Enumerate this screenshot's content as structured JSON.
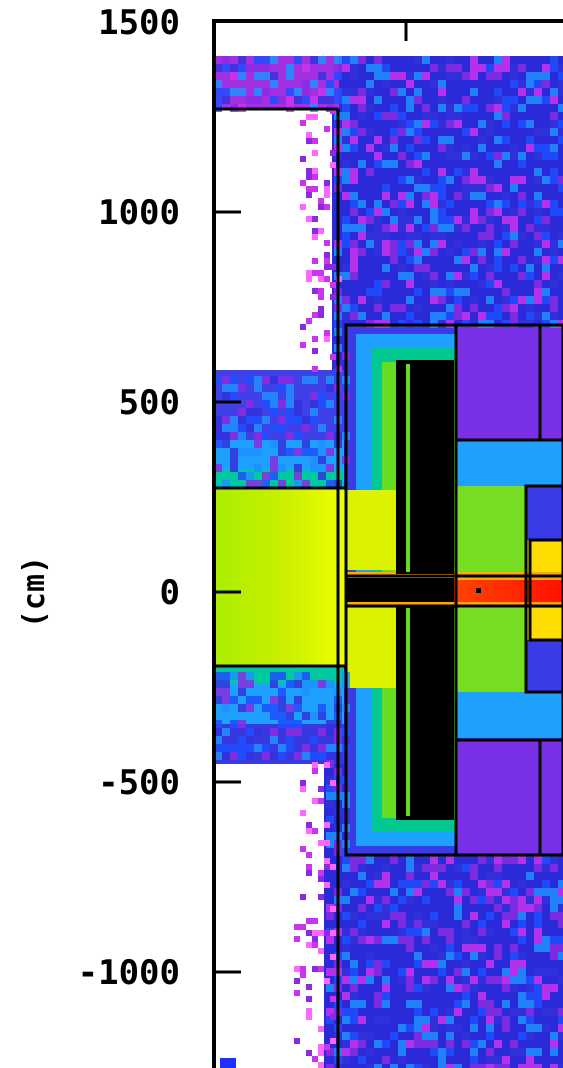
{
  "chart_data": {
    "type": "heatmap",
    "title": "",
    "xlabel": "",
    "ylabel": "(cm)",
    "ylim": [
      -1250,
      1500
    ],
    "yticks": [
      1500,
      1000,
      500,
      0,
      -500,
      -1000
    ],
    "ytick_labels": [
      "1500",
      "1000",
      "500",
      "0",
      "-500",
      "-1000"
    ],
    "grid": false,
    "colors": {
      "background": "#ffffff",
      "frame": "#000000",
      "scale_low_to_high": [
        "#ff66ff",
        "#cc33ee",
        "#8a2be2",
        "#3333dd",
        "#1f4fff",
        "#1e90ff",
        "#00c8ff",
        "#00cc88",
        "#66dd22",
        "#aaee00",
        "#eeff00",
        "#ffcc00",
        "#ff8800",
        "#ff2200"
      ]
    }
  }
}
